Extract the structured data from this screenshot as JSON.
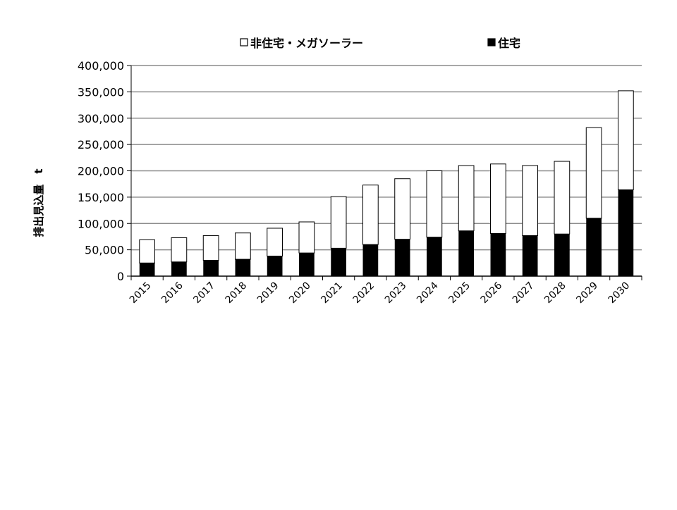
{
  "chart_data": {
    "type": "bar",
    "stacked": true,
    "title": "",
    "xlabel": "",
    "ylabel": "排出見込量　t",
    "ylim": [
      0,
      400000
    ],
    "yticks": [
      0,
      50000,
      100000,
      150000,
      200000,
      250000,
      300000,
      350000,
      400000
    ],
    "ytick_labels": [
      "0",
      "50,000",
      "100,000",
      "150,000",
      "200,000",
      "250,000",
      "300,000",
      "350,000",
      "400,000"
    ],
    "grid": true,
    "legend_position": "top",
    "categories": [
      "2015",
      "2016",
      "2017",
      "2018",
      "2019",
      "2020",
      "2021",
      "2022",
      "2023",
      "2024",
      "2025",
      "2026",
      "2027",
      "2028",
      "2029",
      "2030"
    ],
    "series": [
      {
        "name": "住宅",
        "color": "#000000",
        "values": [
          25000,
          27000,
          30000,
          32000,
          38000,
          44000,
          53000,
          60000,
          70000,
          74000,
          86000,
          81000,
          77000,
          80000,
          110000,
          164000
        ]
      },
      {
        "name": "非住宅・メガソーラー",
        "color": "#ffffff",
        "values": [
          44000,
          46000,
          47000,
          50000,
          53000,
          59000,
          98000,
          113000,
          115000,
          126000,
          124000,
          132000,
          133000,
          138000,
          172000,
          188000
        ]
      }
    ],
    "legend": [
      {
        "label": "非住宅・メガソーラー",
        "color": "#ffffff"
      },
      {
        "label": "住宅",
        "color": "#000000"
      }
    ]
  }
}
